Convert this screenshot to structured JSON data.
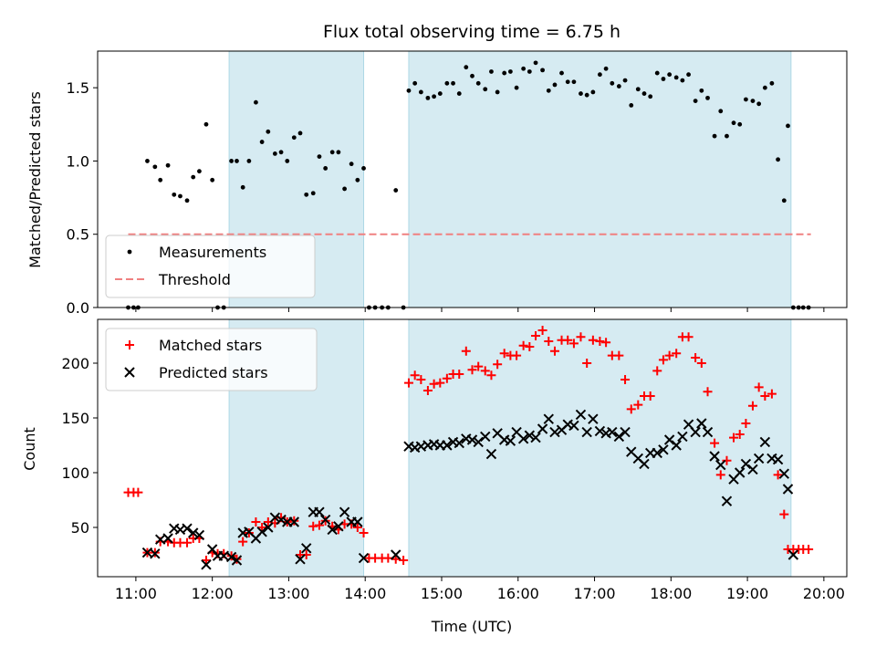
{
  "figure": {
    "title": "Flux total observing time = 6.75 h",
    "xlabel": "Time (UTC)",
    "top_ylabel": "Matched/Predicted stars",
    "bottom_ylabel": "Count"
  },
  "colors": {
    "measurements": "#000000",
    "threshold": "#f08080",
    "matched": "#ff0000",
    "predicted": "#000000",
    "span_fill": "#add8e6"
  },
  "chart_data": [
    {
      "type": "scatter",
      "panel": "top",
      "xlim": [
        10.5,
        20.3
      ],
      "ylim": [
        0,
        1.75
      ],
      "x_ticks": [
        11,
        12,
        13,
        14,
        15,
        16,
        17,
        18,
        19,
        20
      ],
      "x_tick_labels": [
        "11:00",
        "12:00",
        "13:00",
        "14:00",
        "15:00",
        "16:00",
        "17:00",
        "18:00",
        "19:00",
        "20:00"
      ],
      "y_ticks": [
        0.0,
        0.5,
        1.0,
        1.5
      ],
      "y_tick_labels": [
        "0.0",
        "0.5",
        "1.0",
        "1.5"
      ],
      "shaded_spans": [
        [
          12.22,
          13.98
        ],
        [
          14.57,
          19.57
        ]
      ],
      "threshold": {
        "name": "Threshold",
        "y": 0.5,
        "x": [
          10.9,
          19.83
        ],
        "style": "dashed"
      },
      "series": [
        {
          "name": "Measurements",
          "marker": "dot",
          "x": [
            10.9,
            10.97,
            11.03,
            11.15,
            11.25,
            11.32,
            11.42,
            11.5,
            11.58,
            11.67,
            11.75,
            11.83,
            11.92,
            12.0,
            12.07,
            12.15,
            12.25,
            12.32,
            12.4,
            12.48,
            12.57,
            12.65,
            12.73,
            12.82,
            12.9,
            12.98,
            13.07,
            13.15,
            13.23,
            13.32,
            13.4,
            13.48,
            13.57,
            13.65,
            13.73,
            13.82,
            13.9,
            13.98,
            14.05,
            14.13,
            14.22,
            14.3,
            14.4,
            14.5,
            14.57,
            14.65,
            14.73,
            14.82,
            14.9,
            14.98,
            15.07,
            15.15,
            15.23,
            15.32,
            15.4,
            15.48,
            15.57,
            15.65,
            15.73,
            15.82,
            15.9,
            15.98,
            16.07,
            16.15,
            16.23,
            16.32,
            16.4,
            16.48,
            16.57,
            16.65,
            16.73,
            16.82,
            16.9,
            16.98,
            17.07,
            17.15,
            17.23,
            17.32,
            17.4,
            17.48,
            17.57,
            17.65,
            17.73,
            17.82,
            17.9,
            17.98,
            18.07,
            18.15,
            18.23,
            18.32,
            18.4,
            18.48,
            18.57,
            18.65,
            18.73,
            18.82,
            18.9,
            18.98,
            19.07,
            19.15,
            19.23,
            19.32,
            19.4,
            19.48,
            19.53,
            19.6,
            19.67,
            19.73,
            19.8
          ],
          "y": [
            0.0,
            0.0,
            0.0,
            1.0,
            0.96,
            0.87,
            0.97,
            0.77,
            0.76,
            0.73,
            0.89,
            0.93,
            1.25,
            0.87,
            0.0,
            0.0,
            1.0,
            1.0,
            0.82,
            1.0,
            1.4,
            1.13,
            1.2,
            1.05,
            1.06,
            1.0,
            1.16,
            1.19,
            0.77,
            0.78,
            1.03,
            0.95,
            1.06,
            1.06,
            0.81,
            0.98,
            0.87,
            0.95,
            0.0,
            0.0,
            0.0,
            0.0,
            0.8,
            0.0,
            1.48,
            1.53,
            1.47,
            1.43,
            1.44,
            1.46,
            1.53,
            1.53,
            1.46,
            1.64,
            1.58,
            1.53,
            1.49,
            1.61,
            1.47,
            1.6,
            1.61,
            1.5,
            1.63,
            1.61,
            1.67,
            1.62,
            1.48,
            1.52,
            1.6,
            1.54,
            1.54,
            1.46,
            1.45,
            1.47,
            1.59,
            1.63,
            1.53,
            1.51,
            1.55,
            1.38,
            1.49,
            1.46,
            1.44,
            1.6,
            1.56,
            1.59,
            1.57,
            1.55,
            1.59,
            1.41,
            1.48,
            1.43,
            1.17,
            1.34,
            1.17,
            1.26,
            1.25,
            1.42,
            1.41,
            1.39,
            1.5,
            1.53,
            1.01,
            0.73,
            1.24,
            0.0,
            0.0,
            0.0,
            0.0
          ]
        }
      ],
      "legend": {
        "placement": "lower-left",
        "entries": [
          "Measurements",
          "Threshold"
        ]
      }
    },
    {
      "type": "scatter",
      "panel": "bottom",
      "xlim": [
        10.5,
        20.3
      ],
      "ylim": [
        5,
        240
      ],
      "y_ticks": [
        50,
        100,
        150,
        200
      ],
      "y_tick_labels": [
        "50",
        "100",
        "150",
        "200"
      ],
      "x_ticks": [
        11,
        12,
        13,
        14,
        15,
        16,
        17,
        18,
        19,
        20
      ],
      "x_tick_labels": [
        "11:00",
        "12:00",
        "13:00",
        "14:00",
        "15:00",
        "16:00",
        "17:00",
        "18:00",
        "19:00",
        "20:00"
      ],
      "shaded_spans": [
        [
          12.22,
          13.98
        ],
        [
          14.57,
          19.57
        ]
      ],
      "series": [
        {
          "name": "Matched stars",
          "marker": "plus",
          "x": [
            10.9,
            10.97,
            11.03,
            11.15,
            11.25,
            11.32,
            11.42,
            11.5,
            11.58,
            11.67,
            11.75,
            11.83,
            11.92,
            12.0,
            12.07,
            12.15,
            12.25,
            12.32,
            12.4,
            12.48,
            12.57,
            12.65,
            12.73,
            12.82,
            12.9,
            12.98,
            13.07,
            13.15,
            13.23,
            13.32,
            13.4,
            13.48,
            13.57,
            13.65,
            13.73,
            13.82,
            13.9,
            13.98,
            14.05,
            14.13,
            14.22,
            14.3,
            14.4,
            14.5,
            14.57,
            14.65,
            14.73,
            14.82,
            14.9,
            14.98,
            15.07,
            15.15,
            15.23,
            15.32,
            15.4,
            15.48,
            15.57,
            15.65,
            15.73,
            15.82,
            15.9,
            15.98,
            16.07,
            16.15,
            16.23,
            16.32,
            16.4,
            16.48,
            16.57,
            16.65,
            16.73,
            16.82,
            16.9,
            16.98,
            17.07,
            17.15,
            17.23,
            17.32,
            17.4,
            17.48,
            17.57,
            17.65,
            17.73,
            17.82,
            17.9,
            17.98,
            18.07,
            18.15,
            18.23,
            18.32,
            18.4,
            18.48,
            18.57,
            18.65,
            18.73,
            18.82,
            18.9,
            18.98,
            19.07,
            19.15,
            19.23,
            19.32,
            19.4,
            19.48,
            19.53,
            19.6,
            19.67,
            19.73,
            19.8
          ],
          "y": [
            82,
            82,
            82,
            27,
            27,
            37,
            37,
            36,
            36,
            36,
            40,
            40,
            20,
            27,
            26,
            26,
            24,
            21,
            37,
            45,
            55,
            50,
            55,
            54,
            59,
            55,
            56,
            25,
            25,
            51,
            52,
            56,
            51,
            48,
            53,
            53,
            50,
            45,
            22,
            22,
            22,
            22,
            21,
            20,
            182,
            189,
            185,
            175,
            181,
            182,
            186,
            190,
            190,
            211,
            194,
            197,
            193,
            189,
            199,
            209,
            207,
            207,
            216,
            215,
            225,
            230,
            220,
            211,
            221,
            221,
            218,
            224,
            200,
            221,
            220,
            219,
            207,
            207,
            185,
            158,
            162,
            170,
            170,
            193,
            203,
            207,
            209,
            224,
            224,
            205,
            200,
            174,
            127,
            98,
            111,
            132,
            135,
            145,
            161,
            178,
            170,
            172,
            98,
            62,
            30,
            30,
            30,
            30,
            30
          ]
        },
        {
          "name": "Predicted stars",
          "marker": "x",
          "x": [
            11.15,
            11.25,
            11.32,
            11.42,
            11.5,
            11.58,
            11.67,
            11.75,
            11.83,
            11.92,
            12.0,
            12.07,
            12.15,
            12.25,
            12.32,
            12.4,
            12.48,
            12.57,
            12.65,
            12.73,
            12.82,
            12.9,
            12.98,
            13.07,
            13.15,
            13.23,
            13.32,
            13.4,
            13.48,
            13.57,
            13.65,
            13.73,
            13.82,
            13.9,
            13.98,
            14.4,
            14.57,
            14.65,
            14.73,
            14.82,
            14.9,
            14.98,
            15.07,
            15.15,
            15.23,
            15.32,
            15.4,
            15.48,
            15.57,
            15.65,
            15.73,
            15.82,
            15.9,
            15.98,
            16.07,
            16.15,
            16.23,
            16.32,
            16.4,
            16.48,
            16.57,
            16.65,
            16.73,
            16.82,
            16.9,
            16.98,
            17.07,
            17.15,
            17.23,
            17.32,
            17.4,
            17.48,
            17.57,
            17.65,
            17.73,
            17.82,
            17.9,
            17.98,
            18.07,
            18.15,
            18.23,
            18.32,
            18.4,
            18.48,
            18.57,
            18.65,
            18.73,
            18.82,
            18.9,
            18.98,
            19.07,
            19.15,
            19.23,
            19.32,
            19.4,
            19.48,
            19.53,
            19.6
          ],
          "y": [
            27,
            26,
            39,
            40,
            49,
            48,
            49,
            45,
            43,
            16,
            30,
            24,
            24,
            23,
            20,
            45,
            46,
            40,
            46,
            50,
            59,
            57,
            55,
            55,
            21,
            31,
            64,
            64,
            57,
            48,
            51,
            64,
            55,
            55,
            22,
            25,
            124,
            123,
            124,
            125,
            126,
            125,
            125,
            128,
            127,
            131,
            130,
            128,
            133,
            117,
            136,
            130,
            129,
            137,
            131,
            134,
            132,
            140,
            149,
            137,
            139,
            144,
            143,
            153,
            137,
            149,
            138,
            136,
            137,
            133,
            137,
            119,
            113,
            108,
            118,
            118,
            121,
            130,
            125,
            133,
            144,
            137,
            145,
            137,
            115,
            107,
            74,
            94,
            100,
            108,
            103,
            113,
            128,
            113,
            112,
            99,
            85,
            25
          ]
        }
      ],
      "legend": {
        "placement": "upper-left",
        "entries": [
          "Matched stars",
          "Predicted stars"
        ]
      }
    }
  ]
}
